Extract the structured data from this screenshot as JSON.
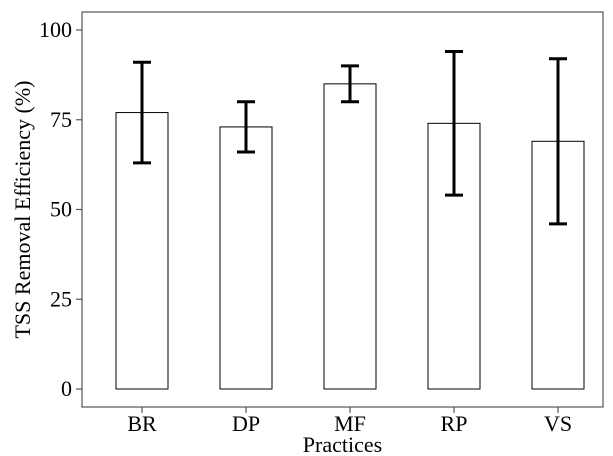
{
  "chart_data": {
    "type": "bar",
    "categories": [
      "BR",
      "DP",
      "MF",
      "RP",
      "VS"
    ],
    "values": [
      77,
      73,
      85,
      74,
      69
    ],
    "error_low": [
      63,
      66,
      80,
      54,
      46
    ],
    "error_high": [
      91,
      80,
      90,
      94,
      92
    ],
    "title": "",
    "xlabel": "Practices",
    "ylabel": "TSS Removal Efficiency (%)",
    "ylim": [
      0,
      100
    ],
    "yticks": [
      "0",
      "25",
      "50",
      "75",
      "100"
    ],
    "grid": false,
    "bar_fill": "#ffffff",
    "bar_stroke": "#000000",
    "axis_color": "#555555"
  }
}
